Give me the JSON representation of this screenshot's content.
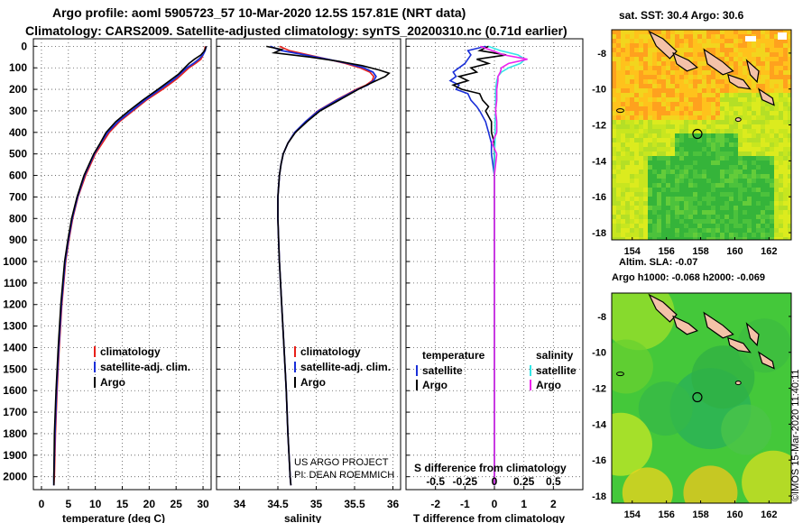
{
  "header": {
    "line1": "Argo profile: aoml 5905723_57 10-Mar-2020 12.5S 157.81E (NRT data)",
    "line2": "Climatology: CARS2009. Satellite-adjusted climatology: synTS_20200310.nc (0.71d earlier)"
  },
  "colors": {
    "climatology": "#e8201a",
    "satellite": "#1a2fd8",
    "argo": "#000000",
    "sat_salinity": "#33e6e6",
    "argo_salinity": "#ee22ee"
  },
  "depth_axis": {
    "ticks": [
      0,
      100,
      200,
      300,
      400,
      500,
      600,
      700,
      800,
      900,
      1000,
      1100,
      1200,
      1300,
      1400,
      1500,
      1600,
      1700,
      1800,
      1900,
      2000
    ],
    "range": [
      -35,
      2060
    ]
  },
  "chart_data": [
    {
      "type": "line",
      "xlabel": "temperature (deg C)",
      "xticks": [
        "0",
        "5",
        "10",
        "15",
        "20",
        "25",
        "30"
      ],
      "xlim": [
        -1.5,
        31.5
      ],
      "legend": [
        "climatology",
        "satellite-adj. clim.",
        "Argo"
      ],
      "series": [
        {
          "name": "climatology",
          "depth": [
            0,
            20,
            40,
            60,
            80,
            100,
            150,
            200,
            250,
            300,
            350,
            400,
            450,
            500,
            600,
            700,
            800,
            900,
            1000,
            1200,
            1400,
            1600,
            1800,
            2000,
            2040
          ],
          "values": [
            30.4,
            30.3,
            30.0,
            29.6,
            28.6,
            27.4,
            25.2,
            22.5,
            19.5,
            17.0,
            14.5,
            12.6,
            11.3,
            10.0,
            8.2,
            6.8,
            5.8,
            5.1,
            4.5,
            3.8,
            3.3,
            2.9,
            2.6,
            2.4,
            2.3
          ]
        },
        {
          "name": "satellite-adj. clim.",
          "depth": [
            0,
            20,
            40,
            60,
            80,
            100,
            150,
            200,
            250,
            300,
            350,
            400,
            450,
            500,
            600,
            700,
            800,
            900,
            1000,
            1200,
            1400,
            1600,
            1800,
            2000,
            2040
          ],
          "values": [
            30.6,
            30.4,
            30.0,
            29.2,
            28.2,
            27.0,
            24.8,
            22.0,
            19.2,
            16.7,
            14.2,
            12.3,
            11.0,
            9.8,
            8.0,
            6.7,
            5.7,
            5.0,
            4.4,
            3.7,
            3.2,
            2.8,
            2.5,
            2.3,
            2.3
          ]
        },
        {
          "name": "Argo",
          "depth": [
            0,
            20,
            40,
            60,
            80,
            100,
            130,
            160,
            200,
            250,
            300,
            350,
            400,
            450,
            500,
            600,
            700,
            800,
            900,
            1000,
            1200,
            1400,
            1600,
            1800,
            2000,
            2040
          ],
          "values": [
            30.6,
            30.3,
            29.6,
            28.4,
            27.4,
            26.6,
            25.4,
            23.8,
            21.6,
            18.8,
            16.2,
            13.8,
            12.0,
            10.9,
            9.7,
            7.9,
            6.6,
            5.6,
            4.9,
            4.3,
            3.6,
            3.1,
            2.7,
            2.4,
            2.3,
            2.3
          ]
        }
      ]
    },
    {
      "type": "line",
      "xlabel": "salinity",
      "xticks": [
        "34",
        "34.5",
        "35",
        "35.5",
        "36"
      ],
      "xlim": [
        33.7,
        36.1
      ],
      "legend": [
        "climatology",
        "satellite-adj. clim.",
        "Argo"
      ],
      "annotation": [
        "US ARGO PROJECT",
        "PI: DEAN ROEMMICH"
      ],
      "series": [
        {
          "name": "climatology",
          "depth": [
            0,
            20,
            40,
            60,
            80,
            100,
            120,
            140,
            160,
            180,
            200,
            250,
            300,
            350,
            400,
            450,
            500,
            550,
            600,
            700,
            800,
            900,
            1000,
            1200,
            1400,
            1600,
            1800,
            2000,
            2040
          ],
          "values": [
            34.52,
            34.65,
            34.9,
            35.15,
            35.38,
            35.57,
            35.7,
            35.75,
            35.73,
            35.65,
            35.52,
            35.26,
            35.02,
            34.86,
            34.72,
            34.63,
            34.57,
            34.54,
            34.52,
            34.5,
            34.5,
            34.51,
            34.52,
            34.55,
            34.58,
            34.61,
            34.63,
            34.66,
            34.67
          ]
        },
        {
          "name": "satellite-adj. clim.",
          "depth": [
            0,
            20,
            40,
            60,
            80,
            100,
            120,
            140,
            160,
            180,
            200,
            250,
            300,
            350,
            400,
            450,
            500,
            550,
            600,
            700,
            800,
            900,
            1000,
            1200,
            1400,
            1600,
            1800,
            2000,
            2040
          ],
          "values": [
            34.4,
            34.55,
            34.85,
            35.15,
            35.42,
            35.62,
            35.74,
            35.78,
            35.75,
            35.67,
            35.54,
            35.27,
            35.03,
            34.86,
            34.72,
            34.63,
            34.57,
            34.54,
            34.52,
            34.5,
            34.5,
            34.51,
            34.52,
            34.55,
            34.58,
            34.61,
            34.63,
            34.66,
            34.67
          ]
        },
        {
          "name": "Argo",
          "depth": [
            0,
            15,
            30,
            50,
            70,
            90,
            110,
            125,
            140,
            160,
            180,
            200,
            250,
            300,
            350,
            400,
            450,
            500,
            550,
            600,
            700,
            800,
            900,
            1000,
            1200,
            1400,
            1600,
            1800,
            2000,
            2040
          ],
          "values": [
            34.35,
            34.55,
            34.45,
            34.92,
            35.3,
            35.6,
            35.82,
            35.95,
            35.9,
            35.78,
            35.66,
            35.55,
            35.3,
            35.05,
            34.88,
            34.73,
            34.63,
            34.57,
            34.54,
            34.52,
            34.5,
            34.5,
            34.51,
            34.52,
            34.55,
            34.58,
            34.61,
            34.63,
            34.66,
            34.67
          ]
        }
      ]
    },
    {
      "type": "line",
      "xlabel": "T difference from climatology",
      "xlabel2": "S difference from climatology",
      "xticks": [
        "-2",
        "-1",
        "0",
        "1",
        "2"
      ],
      "xticks2": [
        "-0.5",
        "-0.25",
        "0",
        "0.25",
        "0.5"
      ],
      "xlim": [
        -3.0,
        3.0
      ],
      "legend_headers": [
        "temperature",
        "salinity"
      ],
      "legend": [
        "satellite",
        "Argo",
        "satellite",
        "Argo"
      ],
      "series": [
        {
          "name": "temperature satellite",
          "depth": [
            0,
            20,
            40,
            60,
            80,
            100,
            120,
            140,
            160,
            180,
            200,
            220,
            250,
            280,
            300,
            350,
            400,
            450,
            500,
            600,
            800,
            1000,
            1500,
            2000,
            2040
          ],
          "values": [
            -0.3,
            -0.9,
            -0.8,
            -0.9,
            -1.0,
            -1.2,
            -1.4,
            -1.3,
            -1.5,
            -1.2,
            -1.3,
            -0.9,
            -0.8,
            -0.6,
            -0.5,
            -0.3,
            -0.2,
            -0.1,
            -0.1,
            0,
            0,
            0,
            0,
            0,
            0
          ]
        },
        {
          "name": "temperature Argo",
          "depth": [
            0,
            20,
            40,
            60,
            80,
            100,
            120,
            140,
            160,
            180,
            200,
            220,
            250,
            280,
            300,
            350,
            400,
            450,
            500,
            600,
            800,
            1000,
            1500,
            2000,
            2040
          ],
          "values": [
            -0.2,
            -0.5,
            0.4,
            -0.6,
            -0.2,
            -0.8,
            -0.6,
            -1.2,
            -0.9,
            -1.4,
            -1.1,
            -0.5,
            -0.4,
            -0.2,
            -0.3,
            -0.1,
            -0.1,
            0,
            0,
            0,
            0,
            0,
            0,
            0,
            0
          ]
        },
        {
          "name": "salinity satellite",
          "depth": [
            0,
            20,
            40,
            60,
            80,
            100,
            120,
            140,
            160,
            200,
            250,
            300,
            350,
            400,
            450,
            500,
            600,
            800,
            1000,
            1500,
            2000,
            2040
          ],
          "values": [
            -0.05,
            0.05,
            0.2,
            0.26,
            0.22,
            0.12,
            0.06,
            0.03,
            0.02,
            0.01,
            0.01,
            0.01,
            0.005,
            0.005,
            0.005,
            0,
            0,
            0,
            0,
            0,
            0,
            0
          ]
        },
        {
          "name": "salinity Argo",
          "depth": [
            0,
            20,
            40,
            60,
            80,
            100,
            120,
            140,
            160,
            200,
            250,
            300,
            350,
            400,
            450,
            500,
            550,
            600,
            800,
            1000,
            1500,
            2000,
            2040
          ],
          "values": [
            -0.12,
            -0.02,
            0.08,
            0.28,
            0.12,
            0.06,
            0.05,
            0.03,
            0.03,
            0.02,
            0.02,
            0.01,
            0.02,
            0.02,
            -0.02,
            0.02,
            0.01,
            0,
            0,
            0,
            0,
            0,
            0
          ]
        }
      ]
    }
  ],
  "maps": {
    "top": {
      "title": "sat. SST: 30.4 Argo: 30.6",
      "xticks": [
        "154",
        "156",
        "158",
        "160",
        "162"
      ],
      "yticks": [
        "-8",
        "-10",
        "-12",
        "-14",
        "-16",
        "-18"
      ]
    },
    "bottom": {
      "title": "Altim. SLA: -0.07",
      "subtitle": "Argo h1000: -0.068 h2000: -0.069",
      "xticks": [
        "154",
        "156",
        "158",
        "160",
        "162"
      ],
      "yticks": [
        "-8",
        "-10",
        "-12",
        "-14",
        "-16",
        "-18"
      ]
    },
    "profile_location": {
      "lon": 157.81,
      "lat": -12.5
    },
    "lon_range": [
      152.8,
      163.3
    ],
    "lat_range": [
      -6.7,
      -18.4
    ]
  },
  "credit": "©IMOS 15-Mar-2020 11:40:11"
}
